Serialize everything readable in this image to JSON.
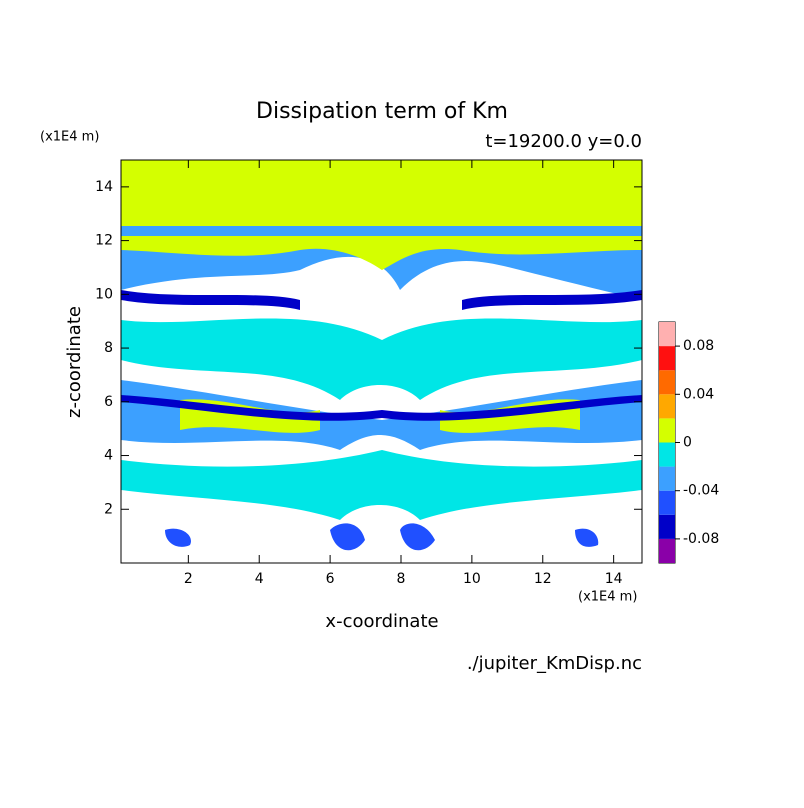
{
  "chart_data": {
    "type": "contour",
    "title": "Dissipation term of Km",
    "subtitle": "t=19200.0 y=0.0",
    "x_label": "x-coordinate",
    "y_label": "z-coordinate",
    "x_unit": "(x1E4 m)",
    "y_unit": "(x1E4 m)",
    "source": "./jupiter_KmDisp.nc",
    "xlim": [
      0.1,
      14.8
    ],
    "ylim": [
      0,
      15
    ],
    "xticks": [
      2,
      4,
      6,
      8,
      10,
      12,
      14
    ],
    "yticks": [
      2,
      4,
      6,
      8,
      10,
      12,
      14
    ],
    "levels": [
      -0.1,
      -0.08,
      -0.06,
      -0.04,
      -0.02,
      0,
      0.02,
      0.04,
      0.06,
      0.08,
      0.1
    ],
    "colors": [
      "#8a00a8",
      "#0000c8",
      "#2050ff",
      "#3ca0ff",
      "#00e6e6",
      "#d4ff00",
      "#ffa800",
      "#ff6a00",
      "#ff1010",
      "#ffb0b0"
    ],
    "colorbar_ticks": [
      -0.08,
      -0.04,
      0,
      0.04,
      0.08
    ]
  }
}
